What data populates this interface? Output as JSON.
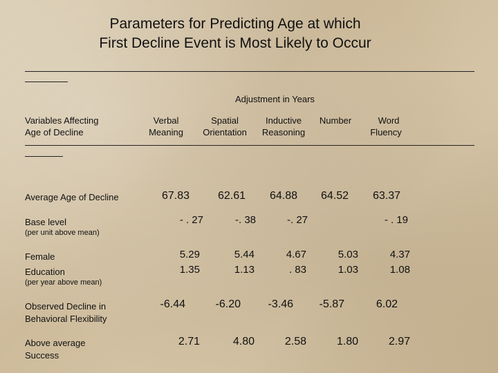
{
  "title": {
    "line1": "Parameters for Predicting Age at which",
    "line2": "First Decline Event is Most Likely to Occur"
  },
  "header": {
    "adjustment": "Adjustment in Years",
    "stub_line1": "Variables Affecting",
    "stub_line2": "Age of Decline",
    "columns": [
      {
        "line1": "Verbal",
        "line2": "Meaning"
      },
      {
        "line1": "Spatial",
        "line2": "Orientation"
      },
      {
        "line1": "Inductive",
        "line2": "Reasoning"
      },
      {
        "line1": "Number",
        "line2": ""
      },
      {
        "line1": "Word",
        "line2": "Fluency"
      }
    ]
  },
  "rows": {
    "average": {
      "label": "Average Age of Decline",
      "values": [
        "67.83",
        "62.61",
        "64.88",
        "64.52",
        "63.37"
      ]
    },
    "base": {
      "label": "Base level",
      "note": "(per unit above mean)",
      "values": [
        "- . 27",
        "-. 38",
        "-. 27",
        "",
        "- . 19"
      ]
    },
    "female": {
      "label": "Female",
      "values": [
        "5.29",
        "5.44",
        "4.67",
        "5.03",
        "4.37"
      ]
    },
    "education": {
      "label": "Education",
      "note": "(per year above mean)",
      "values": [
        "1.35",
        "1.13",
        ". 83",
        "1.03",
        "1.08"
      ]
    },
    "observed": {
      "label_line1": "Observed Decline in",
      "label_line2": "Behavioral Flexibility",
      "values": [
        "-6.44",
        "-6.20",
        "-3.46",
        "-5.87",
        "6.02"
      ]
    },
    "success": {
      "label_line1": "Above average",
      "label_line2": "Success",
      "values": [
        "2.71",
        "4.80",
        "2.58",
        "1.80",
        "2.97"
      ]
    }
  }
}
